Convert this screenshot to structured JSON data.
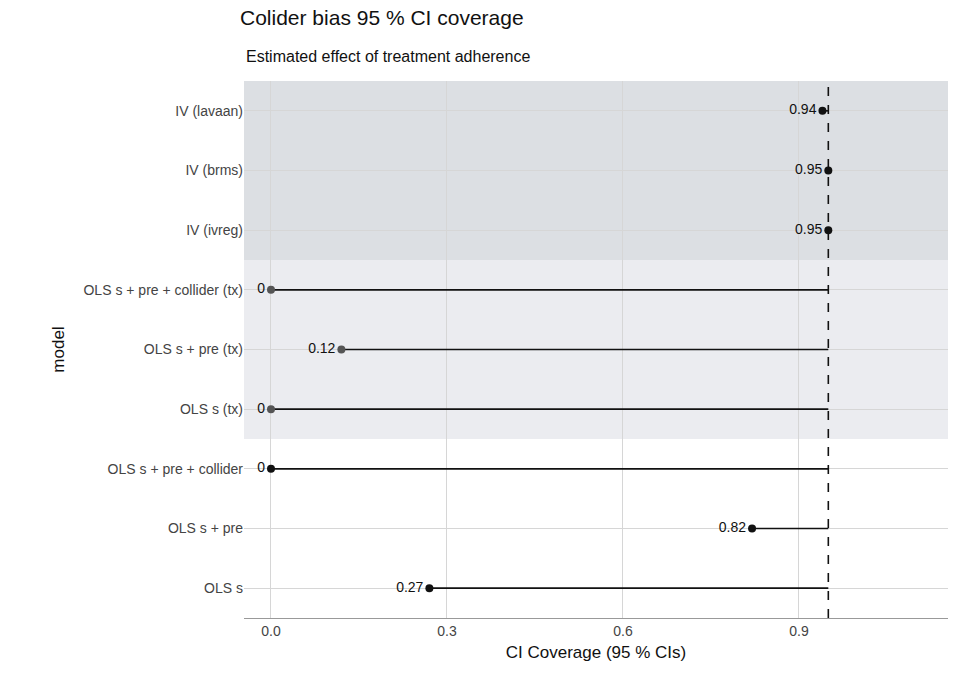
{
  "chart_data": {
    "type": "lollipop",
    "title": "Colider bias 95 % CI coverage",
    "subtitle": "Estimated effect of treatment adherence",
    "x_label": "CI Coverage (95 % CIs)",
    "y_label": "model",
    "orientation": "horizontal",
    "categories": [
      "OLS s",
      "OLS s + pre",
      "OLS s + pre + collider",
      "OLS s (tx)",
      "OLS s + pre (tx)",
      "OLS s + pre + collider (tx)",
      "IV (ivreg)",
      "IV (brms)",
      "IV (lavaan)"
    ],
    "values": [
      0.27,
      0.82,
      0,
      0,
      0.12,
      0,
      0.95,
      0.95,
      0.94
    ],
    "colors": [
      "#111111",
      "#111111",
      "#111111",
      "#555555",
      "#555555",
      "#555555",
      "#111111",
      "#111111",
      "#111111"
    ],
    "reference": 0.95,
    "xlim": [
      -0.046,
      1.154
    ],
    "xticks": [
      {
        "value": 0,
        "label": "0.0"
      },
      0.3,
      0.6,
      0.9
    ],
    "grid": true,
    "data_labels": true,
    "line_style": "dashed"
  }
}
